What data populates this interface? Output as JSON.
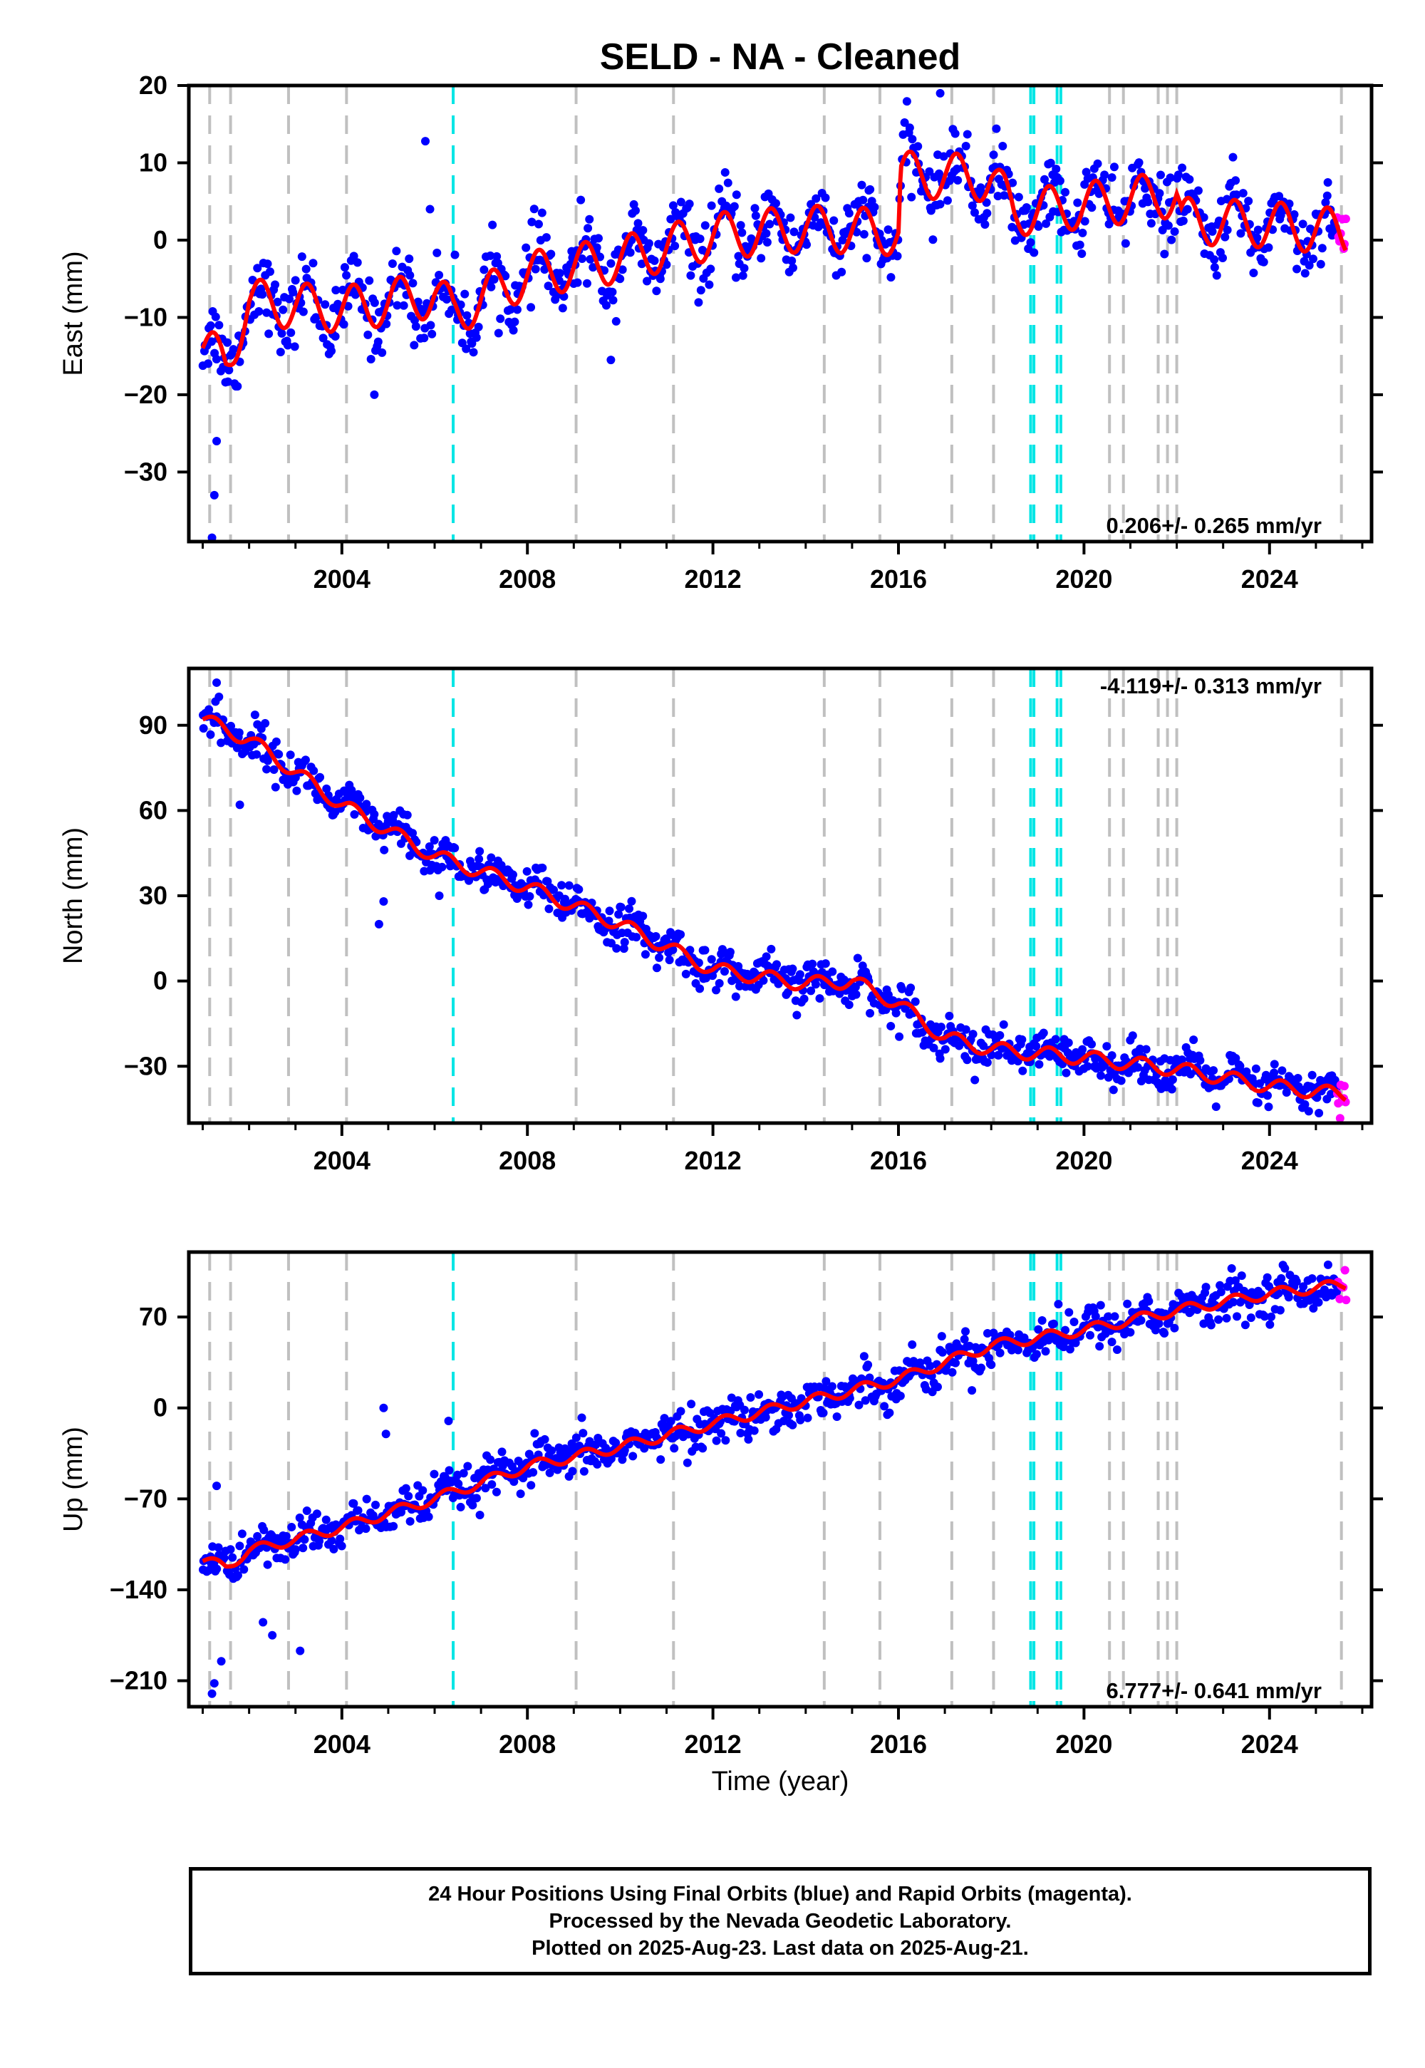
{
  "title": "SELD  - NA - Cleaned",
  "xlabel": "Time (year)",
  "colors": {
    "final_orbits": "#0000ff",
    "rapid_orbits": "#ff00ff",
    "model": "#ff0000",
    "equipment_change": "#c0c0c0",
    "earthquake": "#00e5e5"
  },
  "footer": {
    "line1": "24 Hour Positions Using Final Orbits (blue) and Rapid Orbits (magenta).",
    "line2": "Processed by the Nevada Geodetic Laboratory.",
    "line3": "Plotted on 2025-Aug-23. Last data on 2025-Aug-21."
  },
  "chart_data": [
    {
      "type": "scatter",
      "ylabel": "East (mm)",
      "xlim": [
        2000.7,
        2026.2
      ],
      "ylim": [
        -39,
        20
      ],
      "xticks": [
        2004,
        2008,
        2012,
        2016,
        2020,
        2024
      ],
      "yticks": [
        -30,
        -20,
        -10,
        0,
        10,
        20
      ],
      "rate_label": "0.206+/- 0.265 mm/yr",
      "rate_position": "bottom-right",
      "grid": false,
      "gray_dashed_lines": [
        2001.15,
        2001.6,
        2002.85,
        2004.1,
        2009.05,
        2011.15,
        2014.4,
        2015.6,
        2017.15,
        2018.05,
        2020.55,
        2020.85,
        2021.6,
        2021.8,
        2022.0,
        2025.55
      ],
      "cyan_dashed_lines": [
        2006.4,
        2018.85,
        2018.92,
        2019.42,
        2019.5
      ],
      "model_trend": [
        [
          2001.0,
          -14
        ],
        [
          2001.5,
          -16
        ],
        [
          2002.0,
          -8
        ],
        [
          2004.0,
          -9
        ],
        [
          2006.0,
          -7
        ],
        [
          2006.4,
          -9.5
        ],
        [
          2008.0,
          -4.5
        ],
        [
          2010.0,
          -2.5
        ],
        [
          2012.0,
          0.5
        ],
        [
          2014.0,
          1.5
        ],
        [
          2016.0,
          1.0
        ],
        [
          2016.05,
          8.5
        ],
        [
          2018.0,
          8.0
        ],
        [
          2018.5,
          3.5
        ],
        [
          2020.0,
          4.5
        ],
        [
          2022.0,
          6.0
        ],
        [
          2022.1,
          2.5
        ],
        [
          2024.0,
          2.0
        ],
        [
          2025.6,
          1.0
        ]
      ],
      "seasonal_amplitude": 3.0,
      "scatter_spread": 2.2,
      "outliers": [
        [
          2001.2,
          -38.5
        ],
        [
          2001.25,
          -33
        ],
        [
          2001.3,
          -26
        ],
        [
          2005.8,
          12.8
        ],
        [
          2005.9,
          4
        ],
        [
          2009.8,
          -15.5
        ],
        [
          2016.9,
          19
        ],
        [
          2004.7,
          -20
        ]
      ],
      "rapid_segment": [
        2025.45,
        2025.65
      ]
    },
    {
      "type": "scatter",
      "ylabel": "North (mm)",
      "xlim": [
        2000.7,
        2026.2
      ],
      "ylim": [
        -50,
        110
      ],
      "xticks": [
        2004,
        2008,
        2012,
        2016,
        2020,
        2024
      ],
      "yticks": [
        -30,
        0,
        30,
        60,
        90
      ],
      "rate_label": "-4.119+/- 0.313 mm/yr",
      "rate_position": "top-right",
      "grid": false,
      "gray_dashed_lines": [
        2001.15,
        2001.6,
        2002.85,
        2004.1,
        2009.05,
        2011.15,
        2014.4,
        2015.6,
        2017.15,
        2018.05,
        2020.55,
        2020.85,
        2021.6,
        2021.8,
        2022.0,
        2025.55
      ],
      "cyan_dashed_lines": [
        2006.4,
        2018.85,
        2018.92,
        2019.42,
        2019.5
      ],
      "model_trend": [
        [
          2001.0,
          92
        ],
        [
          2002.0,
          85
        ],
        [
          2004.0,
          62
        ],
        [
          2006.0,
          44
        ],
        [
          2008.0,
          33
        ],
        [
          2010.0,
          20
        ],
        [
          2011.0,
          12
        ],
        [
          2012.0,
          4
        ],
        [
          2014.0,
          -1
        ],
        [
          2015.0,
          0
        ],
        [
          2016.0,
          -8
        ],
        [
          2017.0,
          -20
        ],
        [
          2018.0,
          -24
        ],
        [
          2020.0,
          -27
        ],
        [
          2022.0,
          -31
        ],
        [
          2024.0,
          -37
        ],
        [
          2025.6,
          -40
        ]
      ],
      "seasonal_amplitude": 2.5,
      "scatter_spread": 3.5,
      "outliers": [
        [
          2001.3,
          105
        ],
        [
          2001.35,
          100
        ],
        [
          2001.8,
          62
        ],
        [
          2004.8,
          20
        ],
        [
          2004.9,
          28
        ],
        [
          2006.1,
          30
        ]
      ],
      "rapid_segment": [
        2025.45,
        2025.65
      ]
    },
    {
      "type": "scatter",
      "ylabel": "Up (mm)",
      "xlim": [
        2000.7,
        2026.2
      ],
      "ylim": [
        -230,
        120
      ],
      "xticks": [
        2004,
        2008,
        2012,
        2016,
        2020,
        2024
      ],
      "yticks": [
        -210,
        -140,
        -70,
        0,
        70
      ],
      "rate_label": "6.777+/- 0.641 mm/yr",
      "rate_position": "bottom-right",
      "grid": false,
      "gray_dashed_lines": [
        2001.15,
        2001.6,
        2002.85,
        2004.1,
        2009.05,
        2011.15,
        2014.4,
        2015.6,
        2017.15,
        2018.05,
        2020.55,
        2020.85,
        2021.6,
        2021.8,
        2022.0,
        2025.55
      ],
      "cyan_dashed_lines": [
        2006.4,
        2018.85,
        2018.92,
        2019.42,
        2019.5
      ],
      "model_trend": [
        [
          2001.0,
          -118
        ],
        [
          2001.5,
          -122
        ],
        [
          2002.0,
          -110
        ],
        [
          2004.0,
          -92
        ],
        [
          2006.0,
          -70
        ],
        [
          2008.0,
          -45
        ],
        [
          2010.0,
          -30
        ],
        [
          2012.0,
          -12
        ],
        [
          2014.0,
          5
        ],
        [
          2016.0,
          22
        ],
        [
          2018.0,
          48
        ],
        [
          2020.0,
          60
        ],
        [
          2022.0,
          75
        ],
        [
          2024.0,
          88
        ],
        [
          2025.6,
          95
        ]
      ],
      "seasonal_amplitude": 4.0,
      "scatter_spread": 8.0,
      "outliers": [
        [
          2001.2,
          -220
        ],
        [
          2001.25,
          -212
        ],
        [
          2001.4,
          -195
        ],
        [
          2002.3,
          -165
        ],
        [
          2002.5,
          -175
        ],
        [
          2003.1,
          -187
        ],
        [
          2004.9,
          0
        ],
        [
          2004.95,
          -20
        ],
        [
          2006.3,
          -10
        ],
        [
          2001.3,
          -60
        ]
      ],
      "rapid_segment": [
        2025.45,
        2025.65
      ]
    }
  ]
}
